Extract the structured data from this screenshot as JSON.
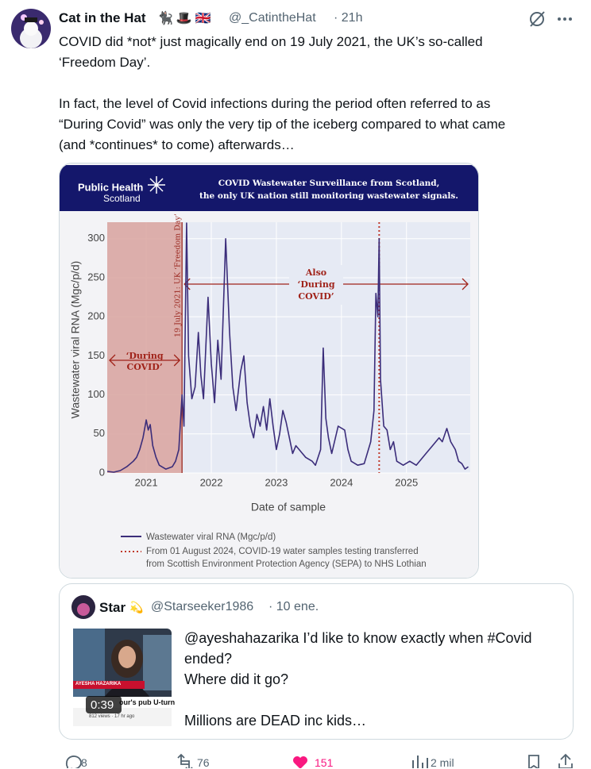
{
  "tweet": {
    "author": {
      "name": "Cat in the Hat",
      "emoji": [
        "🐈‍⬛",
        "🎩",
        "🇬🇧"
      ],
      "handle": "@_CatintheHat",
      "time": "· 21h"
    },
    "text": [
      [
        "COVID did *not* just magically end on 19 July 2021, the UK’s so-called",
        "‘Freedom Day’."
      ],
      [
        "In fact, the level of Covid infections during the period often referred to as",
        "“During Covid” was only the very tip of the iceberg compared to what came",
        "(and *continues* to come) afterwards…"
      ]
    ],
    "quote": {
      "name": "Star",
      "emoji": "💫",
      "handle": "@Starseeker1986",
      "time": "· 10 ene.",
      "thumbnail": {
        "caption": "AYESHA HAZARIKA",
        "headline": "our's pub U-turn",
        "meta": "812 views · 17 hr ago",
        "duration": "0:39"
      },
      "text": [
        [
          "@ayeshahazarika I’d like to know exactly when #Covid",
          "ended?",
          "Where did it go?"
        ],
        [
          "Millions are DEAD inc kids…"
        ]
      ]
    },
    "actions": {
      "replies": "8",
      "reposts": "76",
      "likes": "151",
      "views": "2 mil"
    }
  },
  "chart_data": {
    "type": "line",
    "logo": [
      "Public Health",
      "Scotland"
    ],
    "title": "COVID Wastewater Surveillance from Scotland,",
    "subtitle": "the only UK nation still monitoring wastewater signals.",
    "xlabel": "Date of sample",
    "ylabel": "Wastewater viral RNA (Mgc/p/d)",
    "xlim": [
      2020.4,
      2025.98
    ],
    "xticks": [
      2021,
      2022,
      2023,
      2024,
      2025
    ],
    "ylim": [
      0,
      315
    ],
    "yticks": [
      0,
      50,
      100,
      150,
      200,
      250,
      300
    ],
    "grid": true,
    "x": [
      2020.4,
      2020.5,
      2020.6,
      2020.7,
      2020.8,
      2020.85,
      2020.9,
      2020.95,
      2021.0,
      2021.03,
      2021.06,
      2021.1,
      2021.15,
      2021.2,
      2021.3,
      2021.4,
      2021.45,
      2021.5,
      2021.55,
      2021.58,
      2021.62,
      2021.65,
      2021.7,
      2021.75,
      2021.8,
      2021.84,
      2021.88,
      2021.95,
      2022.0,
      2022.05,
      2022.1,
      2022.15,
      2022.22,
      2022.28,
      2022.33,
      2022.38,
      2022.45,
      2022.5,
      2022.55,
      2022.6,
      2022.65,
      2022.7,
      2022.75,
      2022.8,
      2022.85,
      2022.9,
      2022.95,
      2023.0,
      2023.05,
      2023.1,
      2023.15,
      2023.2,
      2023.25,
      2023.3,
      2023.35,
      2023.45,
      2023.55,
      2023.6,
      2023.68,
      2023.72,
      2023.76,
      2023.8,
      2023.85,
      2023.95,
      2024.05,
      2024.1,
      2024.15,
      2024.25,
      2024.35,
      2024.45,
      2024.5,
      2024.53,
      2024.56,
      2024.58,
      2024.6,
      2024.65,
      2024.7,
      2024.75,
      2024.8,
      2024.85,
      2024.95,
      2025.05,
      2025.15,
      2025.3,
      2025.4,
      2025.5,
      2025.55,
      2025.62,
      2025.68,
      2025.75,
      2025.8,
      2025.85,
      2025.9,
      2025.95
    ],
    "series": [
      {
        "name": "Wastewater viral RNA (Mgc/p/d)",
        "color": "#3b2d7a",
        "values": [
          2,
          1,
          3,
          8,
          15,
          20,
          30,
          45,
          68,
          55,
          62,
          35,
          20,
          10,
          5,
          8,
          15,
          30,
          100,
          60,
          320,
          150,
          95,
          110,
          180,
          125,
          95,
          225,
          140,
          90,
          170,
          120,
          300,
          180,
          110,
          80,
          130,
          150,
          90,
          60,
          45,
          75,
          60,
          85,
          55,
          95,
          60,
          30,
          50,
          80,
          65,
          45,
          25,
          35,
          30,
          20,
          15,
          10,
          30,
          160,
          70,
          45,
          25,
          60,
          55,
          30,
          15,
          10,
          12,
          40,
          80,
          230,
          200,
          300,
          120,
          60,
          55,
          30,
          40,
          15,
          10,
          15,
          10,
          25,
          35,
          45,
          40,
          57,
          40,
          30,
          15,
          12,
          5,
          8
        ]
      }
    ],
    "regions": [
      {
        "x": [
          2020.4,
          2021.55
        ],
        "color": "#d9a39d",
        "label": [
          "‘During",
          "COVID’"
        ]
      }
    ],
    "also_label": [
      "Also",
      "‘During",
      "COVID’"
    ],
    "vlines": [
      {
        "x": 2021.55,
        "color": "#9b2a22",
        "label": "19 July 2021: UK ‘Freedom Day’"
      },
      {
        "x": 2024.58,
        "color": "#c0392b",
        "dash": true,
        "name": [
          "From 01 August 2024, COVID-19 water samples testing transferred",
          "from Scottish Environment Protection Agency (SEPA) to NHS Lothian"
        ]
      }
    ],
    "legend": "bottom"
  }
}
